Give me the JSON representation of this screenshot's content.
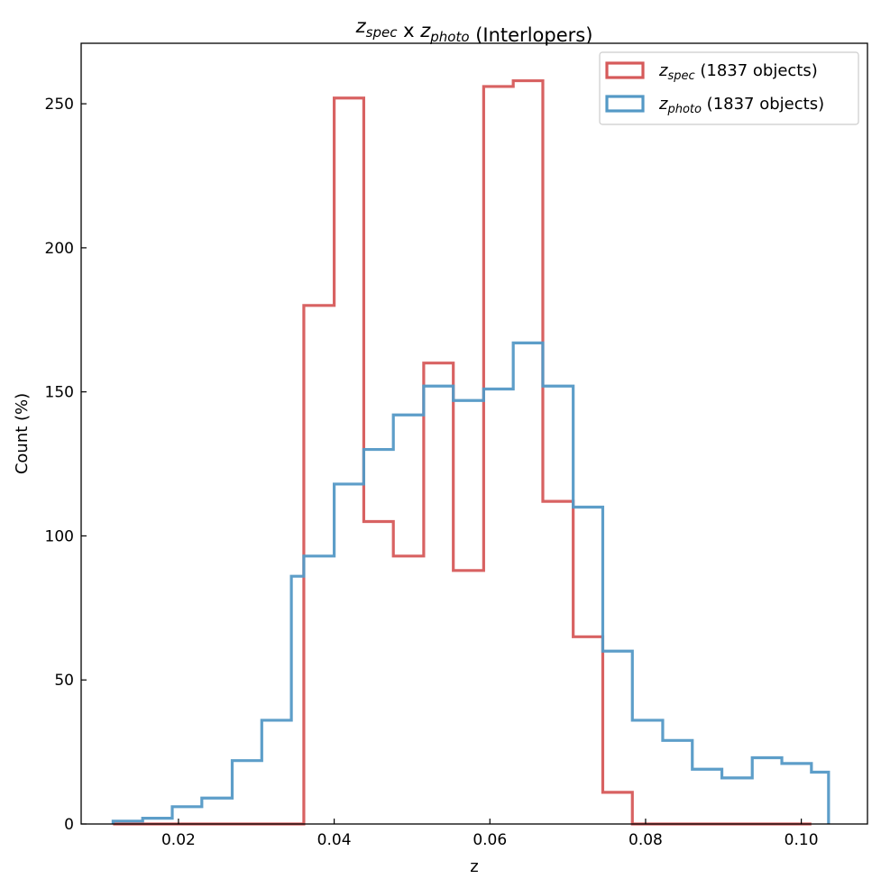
{
  "chart_data": {
    "type": "histogram-step",
    "title": {
      "parts": [
        {
          "main": "z",
          "sub": "spec",
          "italic": true
        },
        {
          "text": " x "
        },
        {
          "main": "z",
          "sub": "photo",
          "italic": true
        },
        {
          "text": " (Interlopers)"
        }
      ]
    },
    "xlabel": "z",
    "ylabel": "Count (%)",
    "xlim": [
      0.0075,
      0.1085
    ],
    "ylim": [
      0,
      271
    ],
    "xticks": [
      0.02,
      0.04,
      0.06,
      0.08,
      0.1
    ],
    "xtick_labels": [
      "0.02",
      "0.04",
      "0.06",
      "0.08",
      "0.10"
    ],
    "yticks": [
      0,
      50,
      100,
      150,
      200,
      250
    ],
    "ytick_labels": [
      "0",
      "50",
      "100",
      "150",
      "200",
      "250"
    ],
    "grid": false,
    "legend_position": "top-right",
    "bin_edges": [
      0.0116,
      0.0154,
      0.0192,
      0.023,
      0.0269,
      0.0307,
      0.0345,
      0.0384,
      0.0422,
      0.046,
      0.0499,
      0.0537,
      0.0575,
      0.0614,
      0.0652,
      0.069,
      0.0729,
      0.0767,
      0.0805,
      0.0844,
      0.0882,
      0.092,
      0.0959,
      0.0997,
      0.1035
    ],
    "series": [
      {
        "name_main": "z",
        "name_sub": "spec",
        "name_suffix": " (1837 objects)",
        "color": "#d65a5a",
        "bin_edges": [
          0.0116,
          0.0154,
          0.0192,
          0.023,
          0.0269,
          0.0307,
          0.0345,
          0.0361,
          0.04,
          0.0438,
          0.0476,
          0.0515,
          0.0553,
          0.0592,
          0.063,
          0.0668,
          0.0707,
          0.0745,
          0.0783,
          0.0822,
          0.086,
          0.0898,
          0.0937,
          0.0975,
          0.1013
        ],
        "values": [
          0,
          0,
          0,
          0,
          0,
          0,
          0,
          180,
          252,
          105,
          93,
          160,
          88,
          256,
          258,
          112,
          65,
          11,
          0,
          0,
          0,
          0,
          0,
          0
        ]
      },
      {
        "name_main": "z",
        "name_sub": "photo",
        "name_suffix": " (1837 objects)",
        "color": "#5499c6",
        "bin_edges": [
          0.0116,
          0.0154,
          0.0192,
          0.023,
          0.0269,
          0.0307,
          0.0345,
          0.0361,
          0.04,
          0.0438,
          0.0476,
          0.0515,
          0.0553,
          0.0592,
          0.063,
          0.0668,
          0.0707,
          0.0745,
          0.0783,
          0.0822,
          0.086,
          0.0898,
          0.0937,
          0.0975,
          0.1013,
          0.1035
        ],
        "values": [
          1,
          2,
          6,
          9,
          22,
          36,
          86,
          93,
          118,
          130,
          142,
          152,
          147,
          151,
          167,
          152,
          110,
          60,
          36,
          29,
          19,
          16,
          23,
          21,
          18
        ]
      }
    ]
  }
}
